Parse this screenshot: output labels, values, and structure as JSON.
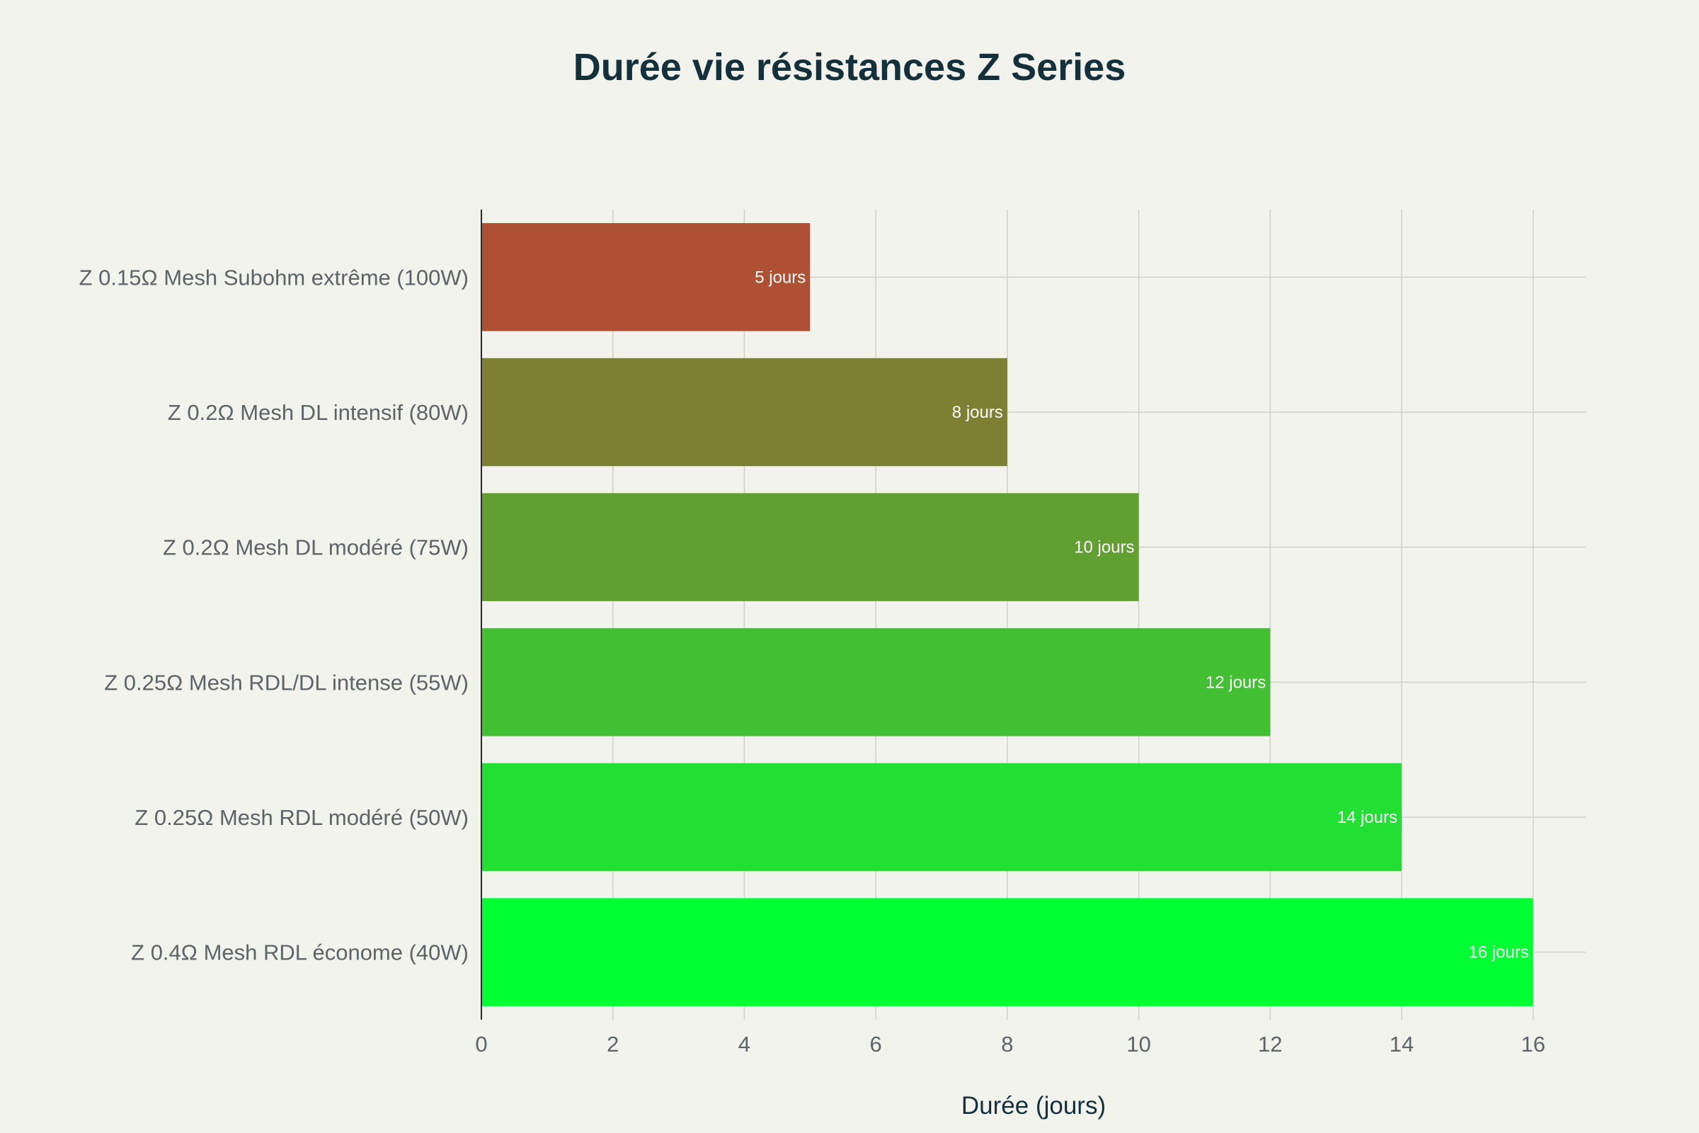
{
  "chart_data": {
    "type": "bar",
    "orientation": "horizontal",
    "title": "Durée vie résistances Z Series",
    "xlabel": "Durée (jours)",
    "ylabel": "",
    "xlim": [
      0,
      16.8
    ],
    "x_ticks": [
      0,
      2,
      4,
      6,
      8,
      10,
      12,
      14,
      16
    ],
    "grid": true,
    "legend": "none",
    "categories": [
      "Z 0.15Ω Mesh Subohm extrême (100W)",
      "Z 0.2Ω Mesh DL intensif (80W)",
      "Z 0.2Ω Mesh DL modéré (75W)",
      "Z 0.25Ω Mesh RDL/DL intense (55W)",
      "Z 0.25Ω Mesh RDL modéré (50W)",
      "Z 0.4Ω Mesh RDL économe (40W)"
    ],
    "values": [
      5,
      8,
      10,
      12,
      14,
      16
    ],
    "data_labels": [
      "5 jours",
      "8 jours",
      "10 jours",
      "12 jours",
      "14 jours",
      "16 jours"
    ],
    "colors": [
      "#ad5033",
      "#7f7f33",
      "#629f33",
      "#43bf33",
      "#22df33",
      "#00ff33"
    ]
  }
}
